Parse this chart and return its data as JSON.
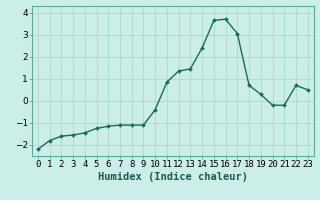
{
  "x": [
    0,
    1,
    2,
    3,
    4,
    5,
    6,
    7,
    8,
    9,
    10,
    11,
    12,
    13,
    14,
    15,
    16,
    17,
    18,
    19,
    20,
    21,
    22,
    23
  ],
  "y": [
    -2.2,
    -1.8,
    -1.6,
    -1.55,
    -1.45,
    -1.25,
    -1.15,
    -1.1,
    -1.1,
    -1.1,
    -0.4,
    0.85,
    1.35,
    1.45,
    2.4,
    3.65,
    3.7,
    3.05,
    0.7,
    0.3,
    -0.2,
    -0.2,
    0.7,
    0.5
  ],
  "line_color": "#1a6b5a",
  "marker": "D",
  "marker_size": 2.0,
  "bg_color": "#cceee8",
  "grid_color": "#aad8d0",
  "xlabel": "Humidex (Indice chaleur)",
  "xlabel_fontsize": 7.5,
  "tick_fontsize": 6.5,
  "ylim": [
    -2.5,
    4.3
  ],
  "xlim": [
    -0.5,
    23.5
  ],
  "yticks": [
    -2,
    -1,
    0,
    1,
    2,
    3,
    4
  ],
  "xtick_labels": [
    "0",
    "1",
    "2",
    "3",
    "4",
    "5",
    "6",
    "7",
    "8",
    "9",
    "10",
    "11",
    "12",
    "13",
    "14",
    "15",
    "16",
    "17",
    "18",
    "19",
    "20",
    "21",
    "22",
    "23"
  ]
}
